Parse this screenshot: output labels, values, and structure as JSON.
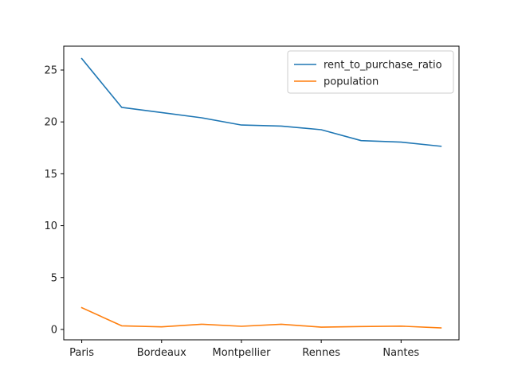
{
  "chart_data": {
    "type": "line",
    "title": "",
    "xlabel": "",
    "ylabel": "",
    "categories": [
      "Paris",
      "",
      "Bordeaux",
      "",
      "Montpellier",
      "",
      "Rennes",
      "",
      "Nantes",
      ""
    ],
    "x_tick_labels": [
      "Paris",
      "Bordeaux",
      "Montpellier",
      "Rennes",
      "Nantes"
    ],
    "ylim": [
      -1,
      27.3
    ],
    "y_ticks": [
      0,
      5,
      10,
      15,
      20,
      25
    ],
    "grid": false,
    "legend_position": "top-right",
    "series": [
      {
        "name": "rent_to_purchase_ratio",
        "color": "#1f77b4",
        "values": [
          26.1,
          21.4,
          20.9,
          20.4,
          19.7,
          19.6,
          19.25,
          18.2,
          18.05,
          17.65
        ]
      },
      {
        "name": "population",
        "color": "#ff7f0e",
        "values": [
          2.1,
          0.35,
          0.25,
          0.5,
          0.3,
          0.5,
          0.22,
          0.28,
          0.32,
          0.15
        ]
      }
    ]
  }
}
